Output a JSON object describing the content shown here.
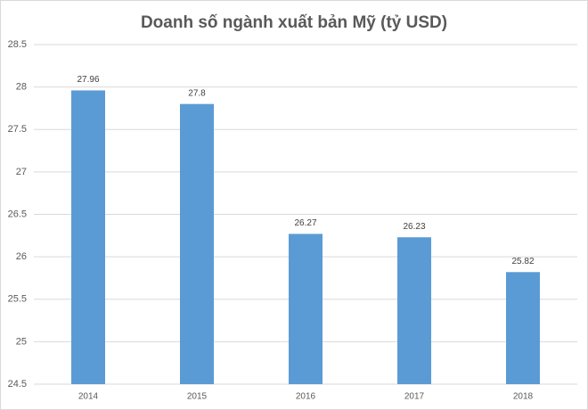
{
  "chart_data": {
    "type": "bar",
    "title": "Doanh số ngành xuất bản Mỹ (tỷ USD)",
    "categories": [
      "2014",
      "2015",
      "2016",
      "2017",
      "2018"
    ],
    "values": [
      27.96,
      27.8,
      26.27,
      26.23,
      25.82
    ],
    "color": "#5b9bd5",
    "ylim": [
      24.5,
      28.5
    ],
    "yticks": [
      24.5,
      25,
      25.5,
      26,
      26.5,
      27,
      27.5,
      28,
      28.5
    ],
    "grid": true
  }
}
